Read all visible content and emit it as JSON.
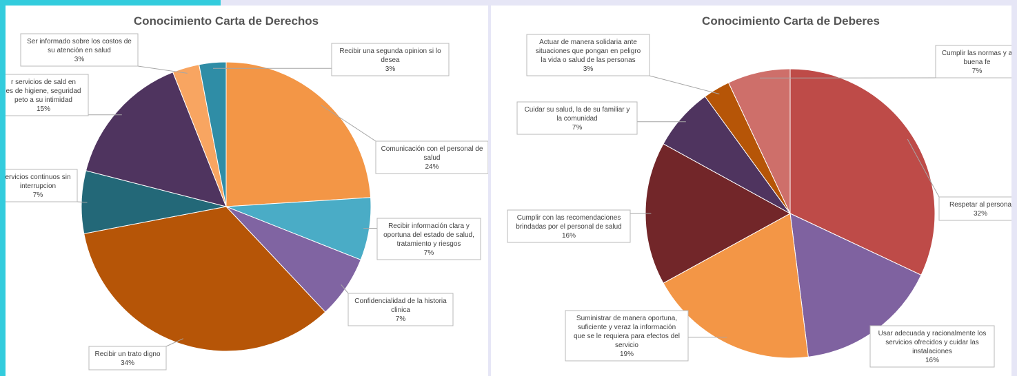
{
  "chart_data": [
    {
      "type": "pie",
      "title": "Conocimiento Carta de Derechos",
      "slices": [
        {
          "label": [
            "Comunicación con el personal de",
            "salud"
          ],
          "pct_label": "24%",
          "value": 24,
          "color": "#f39646"
        },
        {
          "label": [
            "Recibir información clara y",
            "oportuna del estado de salud,",
            "tratamiento y riesgos"
          ],
          "pct_label": "7%",
          "value": 7,
          "color": "#4aacc6"
        },
        {
          "label": [
            "Confidencialidad de la historia",
            "clinica"
          ],
          "pct_label": "7%",
          "value": 7,
          "color": "#8064a2"
        },
        {
          "label": [
            "Recibir un trato digno"
          ],
          "pct_label": "34%",
          "value": 34,
          "color": "#b65507"
        },
        {
          "label": [
            "ervicios continuos sin",
            "interrupcion"
          ],
          "pct_label": "7%",
          "value": 7,
          "color": "#236878"
        },
        {
          "label": [
            "r servicios de sald en",
            "es de higiene, seguridad",
            "peto a su intimidad"
          ],
          "pct_label": "15%",
          "value": 15,
          "color": "#4f345f"
        },
        {
          "label": [
            "Ser informado sobre los costos de",
            "su atención en salud"
          ],
          "pct_label": "3%",
          "value": 3,
          "color": "#f8a561"
        },
        {
          "label": [
            "Recibir una segunda opinion si lo",
            "desea"
          ],
          "pct_label": "3%",
          "value": 3,
          "color": "#2f8da6"
        }
      ]
    },
    {
      "type": "pie",
      "title": "Conocimiento Carta de Deberes",
      "slices": [
        {
          "label": [
            "Respetar al persona"
          ],
          "pct_label": "32%",
          "value": 32,
          "color": "#be4b48"
        },
        {
          "label": [
            "Usar adecuada y racionalmente los",
            "servicios ofrecidos y cuidar las",
            "instalaciones"
          ],
          "pct_label": "16%",
          "value": 16,
          "color": "#7f62a0"
        },
        {
          "label": [
            "Suministrar de manera oportuna,",
            "suficiente y veraz la información",
            "que se le requiera para efectos del",
            "servicio"
          ],
          "pct_label": "19%",
          "value": 19,
          "color": "#f39646"
        },
        {
          "label": [
            "Cumplir con las recomendaciones",
            "brindadas por el personal de salud"
          ],
          "pct_label": "16%",
          "value": 16,
          "color": "#722629"
        },
        {
          "label": [
            "Cuidar su salud, la de su familiar y",
            "la comunidad"
          ],
          "pct_label": "7%",
          "value": 7,
          "color": "#4f345f"
        },
        {
          "label": [
            "Actuar de manera solidaria ante",
            "situaciones que pongan en peligro",
            "la vida o salud de las personas"
          ],
          "pct_label": "3%",
          "value": 3,
          "color": "#b65507"
        },
        {
          "label": [
            "Cumplir las normas y a",
            "buena fe"
          ],
          "pct_label": "7%",
          "value": 7,
          "color": "#ce6f6a"
        }
      ]
    }
  ]
}
